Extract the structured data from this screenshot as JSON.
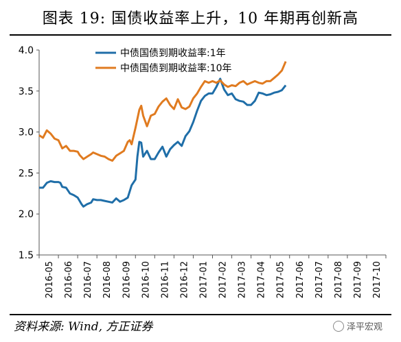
{
  "header": {
    "title": "图表 19:  国债收益率上升，10 年期再创新高"
  },
  "footer": {
    "source": "资料来源: Wind, 方正证券",
    "watermark": "泽平宏观"
  },
  "chart_data": {
    "type": "line",
    "x": [
      "2016-05",
      "2016-06",
      "2016-07",
      "2016-08",
      "2016-09",
      "2016-10",
      "2016-11",
      "2016-12",
      "2017-01",
      "2017-02",
      "2017-03",
      "2017-04",
      "2017-05",
      "2017-06",
      "2017-07",
      "2017-08",
      "2017-09",
      "2017-10"
    ],
    "ylim": [
      1.5,
      4.0
    ],
    "yticks": [
      "1.5",
      "2.0",
      "2.5",
      "3.0",
      "3.5",
      "4.0"
    ],
    "grid": false,
    "legend_position": "top-center",
    "series": [
      {
        "name": "中债国债到期收益率:1年",
        "color": "#1f6ea8",
        "points": [
          [
            0.0,
            2.32
          ],
          [
            0.2,
            2.32
          ],
          [
            0.4,
            2.38
          ],
          [
            0.6,
            2.4
          ],
          [
            0.8,
            2.39
          ],
          [
            1.0,
            2.39
          ],
          [
            1.1,
            2.38
          ],
          [
            1.2,
            2.33
          ],
          [
            1.4,
            2.32
          ],
          [
            1.6,
            2.25
          ],
          [
            1.8,
            2.23
          ],
          [
            2.0,
            2.2
          ],
          [
            2.2,
            2.12
          ],
          [
            2.3,
            2.09
          ],
          [
            2.5,
            2.12
          ],
          [
            2.7,
            2.14
          ],
          [
            2.8,
            2.18
          ],
          [
            3.0,
            2.17
          ],
          [
            3.2,
            2.17
          ],
          [
            3.4,
            2.16
          ],
          [
            3.6,
            2.15
          ],
          [
            3.8,
            2.14
          ],
          [
            4.0,
            2.19
          ],
          [
            4.2,
            2.15
          ],
          [
            4.4,
            2.17
          ],
          [
            4.6,
            2.2
          ],
          [
            4.8,
            2.35
          ],
          [
            5.0,
            2.42
          ],
          [
            5.1,
            2.7
          ],
          [
            5.2,
            2.88
          ],
          [
            5.3,
            2.87
          ],
          [
            5.4,
            2.7
          ],
          [
            5.6,
            2.77
          ],
          [
            5.8,
            2.67
          ],
          [
            6.0,
            2.67
          ],
          [
            6.2,
            2.75
          ],
          [
            6.4,
            2.82
          ],
          [
            6.6,
            2.7
          ],
          [
            6.8,
            2.79
          ],
          [
            7.0,
            2.84
          ],
          [
            7.2,
            2.88
          ],
          [
            7.4,
            2.83
          ],
          [
            7.6,
            2.95
          ],
          [
            7.8,
            3.01
          ],
          [
            8.0,
            3.12
          ],
          [
            8.2,
            3.26
          ],
          [
            8.4,
            3.38
          ],
          [
            8.6,
            3.44
          ],
          [
            8.8,
            3.47
          ],
          [
            9.0,
            3.47
          ],
          [
            9.2,
            3.55
          ],
          [
            9.4,
            3.65
          ],
          [
            9.6,
            3.52
          ],
          [
            9.8,
            3.45
          ],
          [
            10.0,
            3.47
          ],
          [
            10.2,
            3.4
          ],
          [
            10.4,
            3.38
          ],
          [
            10.6,
            3.37
          ],
          [
            10.8,
            3.33
          ],
          [
            11.0,
            3.33
          ],
          [
            11.2,
            3.38
          ],
          [
            11.4,
            3.48
          ],
          [
            11.6,
            3.47
          ],
          [
            11.8,
            3.45
          ],
          [
            12.0,
            3.46
          ],
          [
            12.2,
            3.48
          ],
          [
            12.4,
            3.49
          ],
          [
            12.6,
            3.51
          ],
          [
            12.8,
            3.57
          ]
        ]
      },
      {
        "name": "中债国债到期收益率:10年",
        "color": "#e07b20",
        "points": [
          [
            0.0,
            2.96
          ],
          [
            0.2,
            2.93
          ],
          [
            0.4,
            3.02
          ],
          [
            0.6,
            2.98
          ],
          [
            0.8,
            2.92
          ],
          [
            1.0,
            2.9
          ],
          [
            1.2,
            2.8
          ],
          [
            1.4,
            2.83
          ],
          [
            1.6,
            2.77
          ],
          [
            1.8,
            2.77
          ],
          [
            2.0,
            2.76
          ],
          [
            2.1,
            2.72
          ],
          [
            2.3,
            2.67
          ],
          [
            2.5,
            2.7
          ],
          [
            2.7,
            2.73
          ],
          [
            2.8,
            2.75
          ],
          [
            3.0,
            2.73
          ],
          [
            3.2,
            2.71
          ],
          [
            3.4,
            2.7
          ],
          [
            3.6,
            2.67
          ],
          [
            3.8,
            2.65
          ],
          [
            3.9,
            2.68
          ],
          [
            4.0,
            2.71
          ],
          [
            4.2,
            2.74
          ],
          [
            4.4,
            2.77
          ],
          [
            4.6,
            2.88
          ],
          [
            4.7,
            2.9
          ],
          [
            4.8,
            2.85
          ],
          [
            5.0,
            3.05
          ],
          [
            5.2,
            3.27
          ],
          [
            5.3,
            3.32
          ],
          [
            5.4,
            3.2
          ],
          [
            5.6,
            3.07
          ],
          [
            5.8,
            3.2
          ],
          [
            6.0,
            3.22
          ],
          [
            6.2,
            3.31
          ],
          [
            6.4,
            3.37
          ],
          [
            6.6,
            3.41
          ],
          [
            6.8,
            3.33
          ],
          [
            7.0,
            3.28
          ],
          [
            7.2,
            3.4
          ],
          [
            7.4,
            3.3
          ],
          [
            7.6,
            3.28
          ],
          [
            7.8,
            3.31
          ],
          [
            8.0,
            3.41
          ],
          [
            8.2,
            3.47
          ],
          [
            8.4,
            3.55
          ],
          [
            8.6,
            3.62
          ],
          [
            8.8,
            3.6
          ],
          [
            9.0,
            3.62
          ],
          [
            9.2,
            3.6
          ],
          [
            9.4,
            3.63
          ],
          [
            9.6,
            3.58
          ],
          [
            9.8,
            3.55
          ],
          [
            10.0,
            3.57
          ],
          [
            10.2,
            3.56
          ],
          [
            10.4,
            3.6
          ],
          [
            10.6,
            3.62
          ],
          [
            10.8,
            3.58
          ],
          [
            11.0,
            3.6
          ],
          [
            11.2,
            3.62
          ],
          [
            11.4,
            3.6
          ],
          [
            11.6,
            3.59
          ],
          [
            11.8,
            3.62
          ],
          [
            12.0,
            3.62
          ],
          [
            12.2,
            3.66
          ],
          [
            12.4,
            3.7
          ],
          [
            12.6,
            3.75
          ],
          [
            12.8,
            3.86
          ]
        ]
      }
    ]
  }
}
